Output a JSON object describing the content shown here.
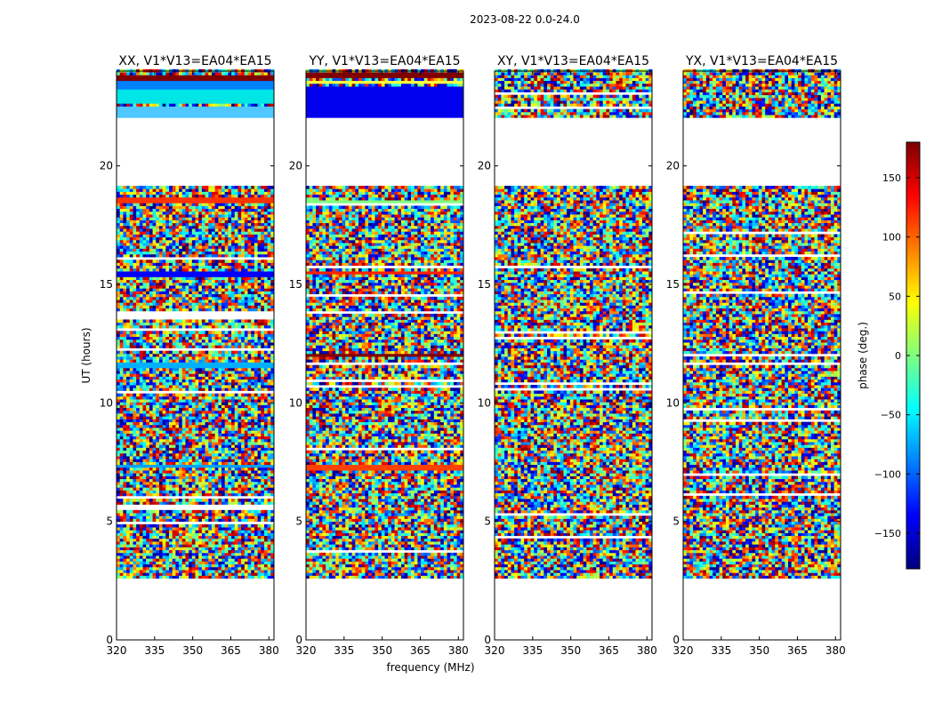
{
  "chart_data": {
    "type": "heatmap",
    "suptitle": "2023-08-22 0.0-24.0",
    "xlabel": "frequency (MHz)",
    "ylabel": "UT (hours)",
    "xlim": [
      320,
      382
    ],
    "ylim": [
      0,
      24
    ],
    "xticks": [
      320,
      335,
      350,
      365,
      380
    ],
    "yticks": [
      0,
      5,
      10,
      15,
      20
    ],
    "colorbar": {
      "label": "phase (deg.)",
      "range": [
        -180,
        180
      ],
      "ticks": [
        -150,
        -100,
        -50,
        0,
        50,
        100,
        150
      ],
      "colormap": "jet",
      "colors": [
        "#00007f",
        "#0000ff",
        "#007fff",
        "#00ffff",
        "#7fff7f",
        "#ffff00",
        "#ff7f00",
        "#ff0000",
        "#7f0000"
      ]
    },
    "data_coverage_hours": [
      2.6,
      24.0
    ],
    "gaps_hours": [
      [
        19.2,
        22.0
      ]
    ],
    "panels": [
      {
        "title": "XX, V1*V13=EA04*EA15",
        "coherent_bands": [
          {
            "t0": 23.65,
            "t1": 23.85,
            "color": "#7f0000"
          },
          {
            "t0": 23.3,
            "t1": 23.55,
            "color": "#007fff"
          },
          {
            "t0": 22.6,
            "t1": 23.25,
            "color": "#00e5e5"
          },
          {
            "t0": 22.1,
            "t1": 22.5,
            "color": "#4fc8ff"
          },
          {
            "t0": 18.4,
            "t1": 18.7,
            "color": "#ff3300"
          },
          {
            "t0": 15.3,
            "t1": 15.5,
            "color": "#0000ff"
          },
          {
            "t0": 11.5,
            "t1": 11.7,
            "color": "#00b0ff"
          },
          {
            "t0": 7.3,
            "t1": 7.45,
            "color": "#00a0ff"
          }
        ]
      },
      {
        "title": "YY, V1*V13=EA04*EA15",
        "coherent_bands": [
          {
            "t0": 23.7,
            "t1": 24.0,
            "color": "#7f0000"
          },
          {
            "t0": 23.45,
            "t1": 23.65,
            "color": "#ffff40"
          },
          {
            "t0": 22.1,
            "t1": 23.35,
            "color": "#0000ee"
          },
          {
            "t0": 18.4,
            "t1": 18.6,
            "color": "#7fff7f"
          },
          {
            "t0": 15.4,
            "t1": 15.6,
            "color": "#ff2000"
          },
          {
            "t0": 11.9,
            "t1": 12.1,
            "color": "#7f0000"
          },
          {
            "t0": 7.2,
            "t1": 7.4,
            "color": "#ff4000"
          }
        ]
      },
      {
        "title": "XY, V1*V13=EA04*EA15",
        "coherent_bands": []
      },
      {
        "title": "YX, V1*V13=EA04*EA15",
        "coherent_bands": []
      }
    ]
  }
}
